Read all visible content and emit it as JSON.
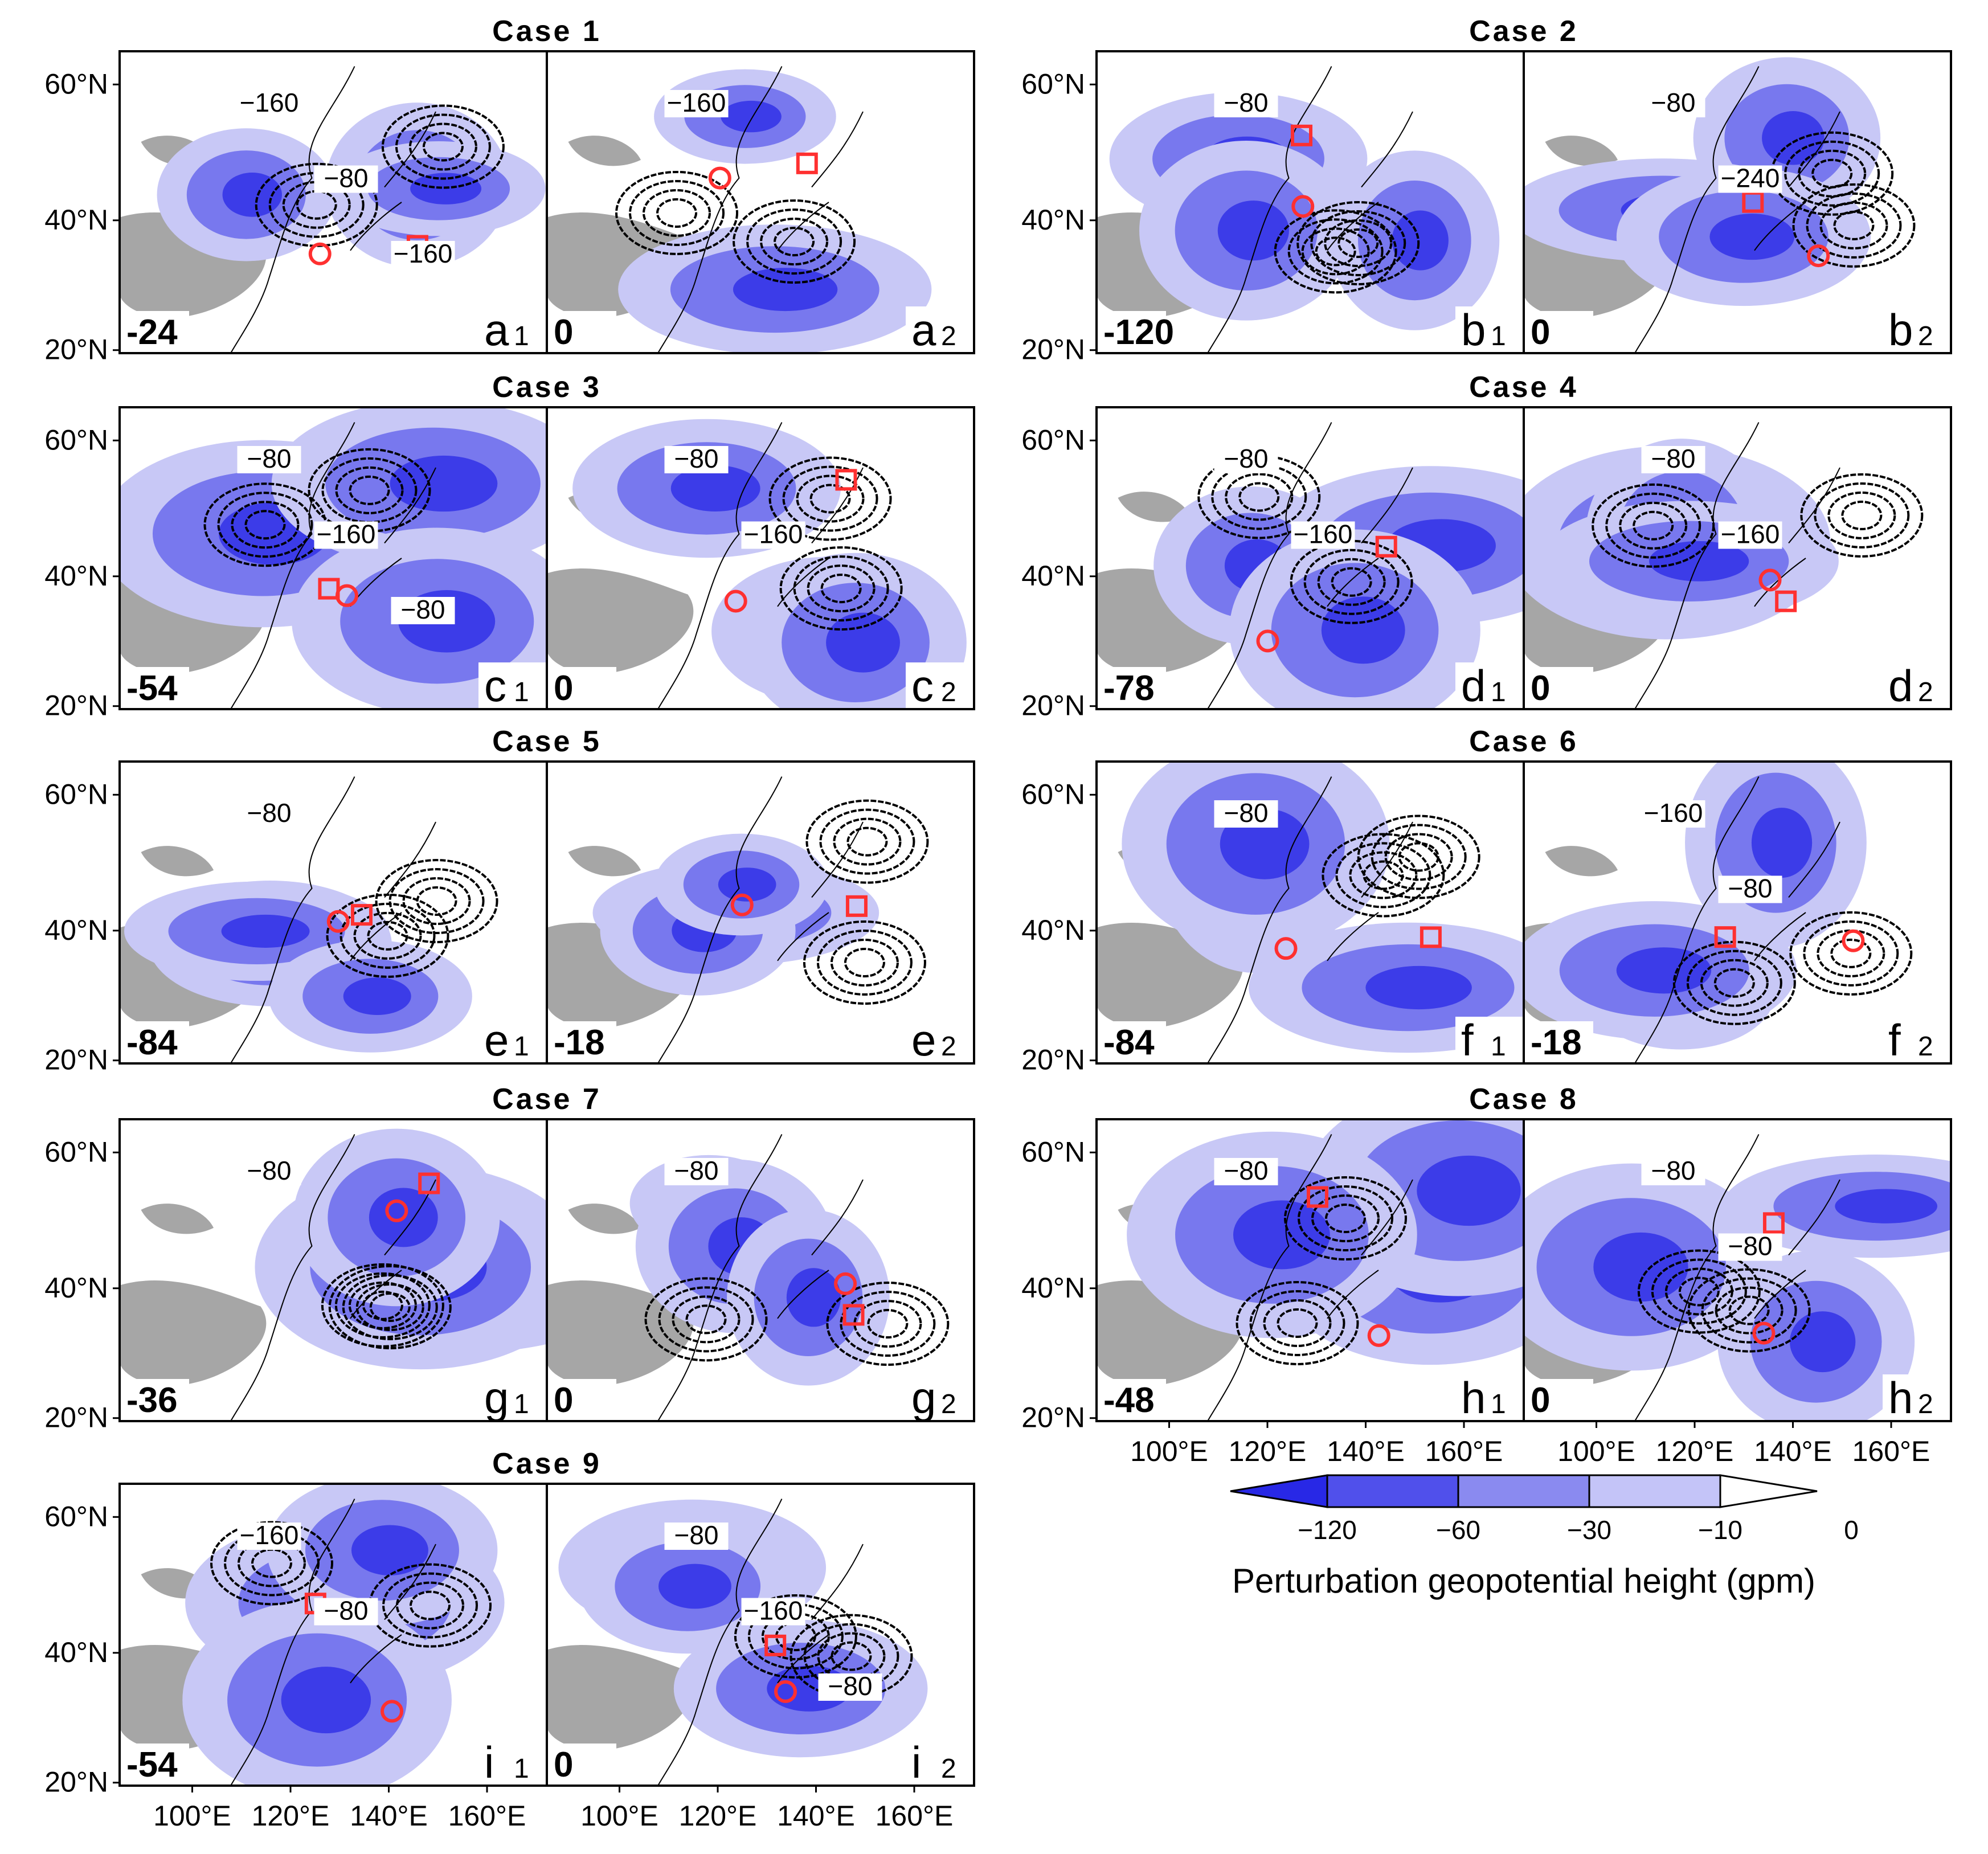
{
  "figure": {
    "lat_ticks": [
      "60°N",
      "40°N",
      "20°N"
    ],
    "lon_ticks": [
      "100°E",
      "120°E",
      "140°E",
      "160°E"
    ],
    "cases": [
      {
        "title": "Case  1",
        "panels": [
          {
            "lag": "-24",
            "letter": "a",
            "sub": "1",
            "contour_labels": [
              "−160",
              "−80",
              "−160"
            ]
          },
          {
            "lag": "0",
            "letter": "a",
            "sub": "2",
            "contour_labels": [
              "−160"
            ]
          }
        ]
      },
      {
        "title": "Case  2",
        "panels": [
          {
            "lag": "-120",
            "letter": "b",
            "sub": "1",
            "contour_labels": [
              "−80"
            ]
          },
          {
            "lag": "0",
            "letter": "b",
            "sub": "2",
            "contour_labels": [
              "−80",
              "−240"
            ]
          }
        ]
      },
      {
        "title": "Case  3",
        "panels": [
          {
            "lag": "-54",
            "letter": "c",
            "sub": "1",
            "contour_labels": [
              "−80",
              "−160",
              "−80"
            ]
          },
          {
            "lag": "0",
            "letter": "c",
            "sub": "2",
            "contour_labels": [
              "−80",
              "−160"
            ]
          }
        ]
      },
      {
        "title": "Case  4",
        "panels": [
          {
            "lag": "-78",
            "letter": "d",
            "sub": "1",
            "contour_labels": [
              "−80",
              "−160"
            ]
          },
          {
            "lag": "0",
            "letter": "d",
            "sub": "2",
            "contour_labels": [
              "−80",
              "−160"
            ]
          }
        ]
      },
      {
        "title": "Case  5",
        "panels": [
          {
            "lag": "-84",
            "letter": "e",
            "sub": "1",
            "contour_labels": [
              "−80"
            ]
          },
          {
            "lag": "-18",
            "letter": "e",
            "sub": "2",
            "contour_labels": []
          }
        ]
      },
      {
        "title": "Case  6",
        "panels": [
          {
            "lag": "-84",
            "letter": "f",
            "sub": "1",
            "contour_labels": [
              "−80"
            ]
          },
          {
            "lag": "-18",
            "letter": "f",
            "sub": "2",
            "contour_labels": [
              "−160",
              "−80"
            ]
          }
        ]
      },
      {
        "title": "Case  7",
        "panels": [
          {
            "lag": "-36",
            "letter": "g",
            "sub": "1",
            "contour_labels": [
              "−80"
            ]
          },
          {
            "lag": "0",
            "letter": "g",
            "sub": "2",
            "contour_labels": [
              "−80"
            ]
          }
        ]
      },
      {
        "title": "Case  8",
        "panels": [
          {
            "lag": "-48",
            "letter": "h",
            "sub": "1",
            "contour_labels": [
              "−80"
            ]
          },
          {
            "lag": "0",
            "letter": "h",
            "sub": "2",
            "contour_labels": [
              "−80",
              "−80"
            ]
          }
        ]
      },
      {
        "title": "Case  9",
        "panels": [
          {
            "lag": "-54",
            "letter": "i",
            "sub": "1",
            "contour_labels": [
              "−160",
              "−80"
            ]
          },
          {
            "lag": "0",
            "letter": "i",
            "sub": "2",
            "contour_labels": [
              "−80",
              "−160",
              "−80"
            ]
          }
        ]
      }
    ],
    "colorbar": {
      "ticks": [
        "−120",
        "−60",
        "−30",
        "−10",
        "0"
      ],
      "colors": [
        "#2828e6",
        "#5050eb",
        "#8a8af0",
        "#c4c4f8",
        "#ffffff"
      ],
      "title": "Perturbation geopotential height (gpm)"
    },
    "colors": {
      "shade_strong": "#3c3ce8",
      "shade_mid": "#7878ee",
      "shade_light": "#c8c8f6",
      "plateau": "#a6a6a6",
      "marker": "#ff3030"
    }
  }
}
